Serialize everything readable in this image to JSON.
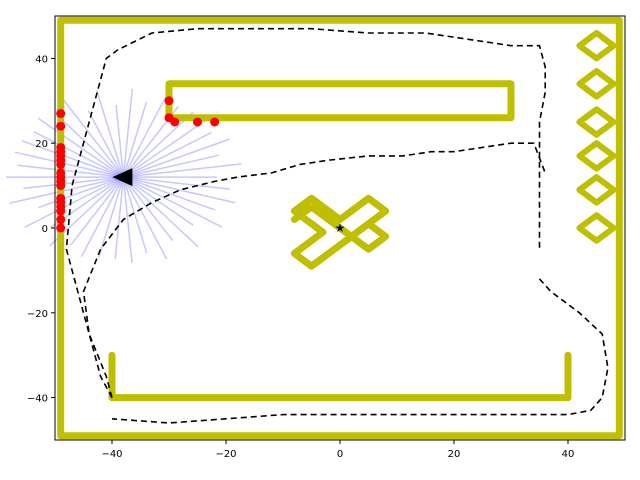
{
  "chart_data": {
    "type": "scatter",
    "xlim": [
      -50,
      50
    ],
    "ylim": [
      -50,
      50
    ],
    "xticks": [
      -40,
      -20,
      0,
      20,
      40
    ],
    "yticks": [
      -40,
      -20,
      0,
      20,
      40
    ],
    "xtick_labels": [
      "−40",
      "−20",
      "0",
      "20",
      "40"
    ],
    "ytick_labels": [
      "−40",
      "−20",
      "0",
      "20",
      "40"
    ],
    "grid": false,
    "colors": {
      "walls": "#bfbf00",
      "lidar_hits": "#ff0000",
      "lidar_rays": "#0000ff",
      "path": "#000000",
      "robot": "#000000"
    },
    "walls": [
      [
        [
          -49,
          -49
        ],
        [
          49,
          -49
        ],
        [
          49,
          49
        ],
        [
          -49,
          49
        ],
        [
          -49,
          -49
        ]
      ],
      [
        [
          -30,
          34
        ],
        [
          30,
          34
        ],
        [
          30,
          26
        ],
        [
          -30,
          26
        ],
        [
          -30,
          34
        ]
      ],
      [
        [
          -40,
          -30
        ],
        [
          -40,
          -40
        ],
        [
          40,
          -40
        ],
        [
          40,
          -30
        ]
      ],
      [
        [
          -8,
          2
        ],
        [
          -5,
          5
        ],
        [
          5,
          -5
        ],
        [
          8,
          -2
        ],
        [
          5,
          1
        ],
        [
          -5,
          -9
        ],
        [
          -8,
          -6
        ],
        [
          -3,
          -1
        ],
        [
          -8,
          4
        ],
        [
          -5,
          7
        ],
        [
          0,
          2
        ],
        [
          5,
          7
        ],
        [
          8,
          4
        ],
        [
          3,
          -1
        ]
      ]
    ],
    "diamonds": [
      [
        45,
        43
      ],
      [
        45,
        34
      ],
      [
        45,
        25
      ],
      [
        45,
        17
      ],
      [
        45,
        9
      ],
      [
        45,
        0
      ]
    ],
    "diamond_half_width": 3,
    "diamond_half_height": 3,
    "lidar_hits": [
      [
        -49,
        27
      ],
      [
        -49,
        24
      ],
      [
        -49,
        19
      ],
      [
        -49,
        18
      ],
      [
        -49,
        17
      ],
      [
        -49,
        16
      ],
      [
        -49,
        15
      ],
      [
        -49,
        13
      ],
      [
        -49,
        12
      ],
      [
        -49,
        11
      ],
      [
        -49,
        10
      ],
      [
        -49,
        7
      ],
      [
        -49,
        6
      ],
      [
        -49,
        5
      ],
      [
        -49,
        4
      ],
      [
        -49,
        2
      ],
      [
        -49,
        0
      ],
      [
        -30,
        30
      ],
      [
        -30,
        26
      ],
      [
        -29,
        25
      ],
      [
        -25,
        25
      ],
      [
        -22,
        25
      ]
    ],
    "robot": {
      "x": -38,
      "y": 12,
      "heading_deg": 180
    },
    "lidar_origin": [
      -38,
      12
    ],
    "lidar_range": 21,
    "lidar_ray_count": 42,
    "path_outer": [
      [
        -40,
        -40
      ],
      [
        -41,
        -35
      ],
      [
        -44,
        -25
      ],
      [
        -45,
        -15
      ],
      [
        -42,
        -5
      ],
      [
        -38,
        2
      ],
      [
        -33,
        6
      ],
      [
        -28,
        9
      ],
      [
        -25,
        10
      ],
      [
        -22,
        11
      ],
      [
        -18,
        12
      ],
      [
        -12,
        13
      ],
      [
        -7,
        15
      ],
      [
        -2,
        16
      ],
      [
        5,
        17
      ],
      [
        11,
        17
      ],
      [
        16,
        18
      ],
      [
        20,
        18
      ],
      [
        25,
        19
      ],
      [
        30,
        20
      ],
      [
        34,
        20
      ],
      [
        36,
        13
      ]
    ],
    "path_main": [
      [
        -40,
        -40
      ],
      [
        -42,
        -35
      ],
      [
        -45,
        -20
      ],
      [
        -48,
        -5
      ],
      [
        -47,
        10
      ],
      [
        -44,
        25
      ],
      [
        -41,
        40
      ],
      [
        -39,
        42
      ],
      [
        -33,
        46
      ],
      [
        -25,
        47
      ],
      [
        -15,
        47
      ],
      [
        -5,
        47
      ],
      [
        5,
        46
      ],
      [
        15,
        46
      ],
      [
        25,
        44
      ],
      [
        30,
        43
      ],
      [
        35,
        43
      ],
      [
        36,
        38
      ],
      [
        36,
        32
      ],
      [
        35,
        25
      ],
      [
        35,
        20
      ],
      [
        35,
        5
      ],
      [
        35,
        -5
      ]
    ],
    "path_lower": [
      [
        35,
        -12
      ],
      [
        37,
        -15
      ],
      [
        42,
        -20
      ],
      [
        46,
        -25
      ],
      [
        47,
        -33
      ],
      [
        46,
        -40
      ],
      [
        44,
        -43
      ],
      [
        40,
        -44
      ],
      [
        30,
        -44
      ],
      [
        20,
        -44
      ],
      [
        10,
        -44
      ],
      [
        0,
        -44
      ],
      [
        -10,
        -44
      ],
      [
        -20,
        -45
      ],
      [
        -30,
        -46
      ],
      [
        -40,
        -45
      ]
    ],
    "goal_marker": [
      0,
      0
    ]
  }
}
